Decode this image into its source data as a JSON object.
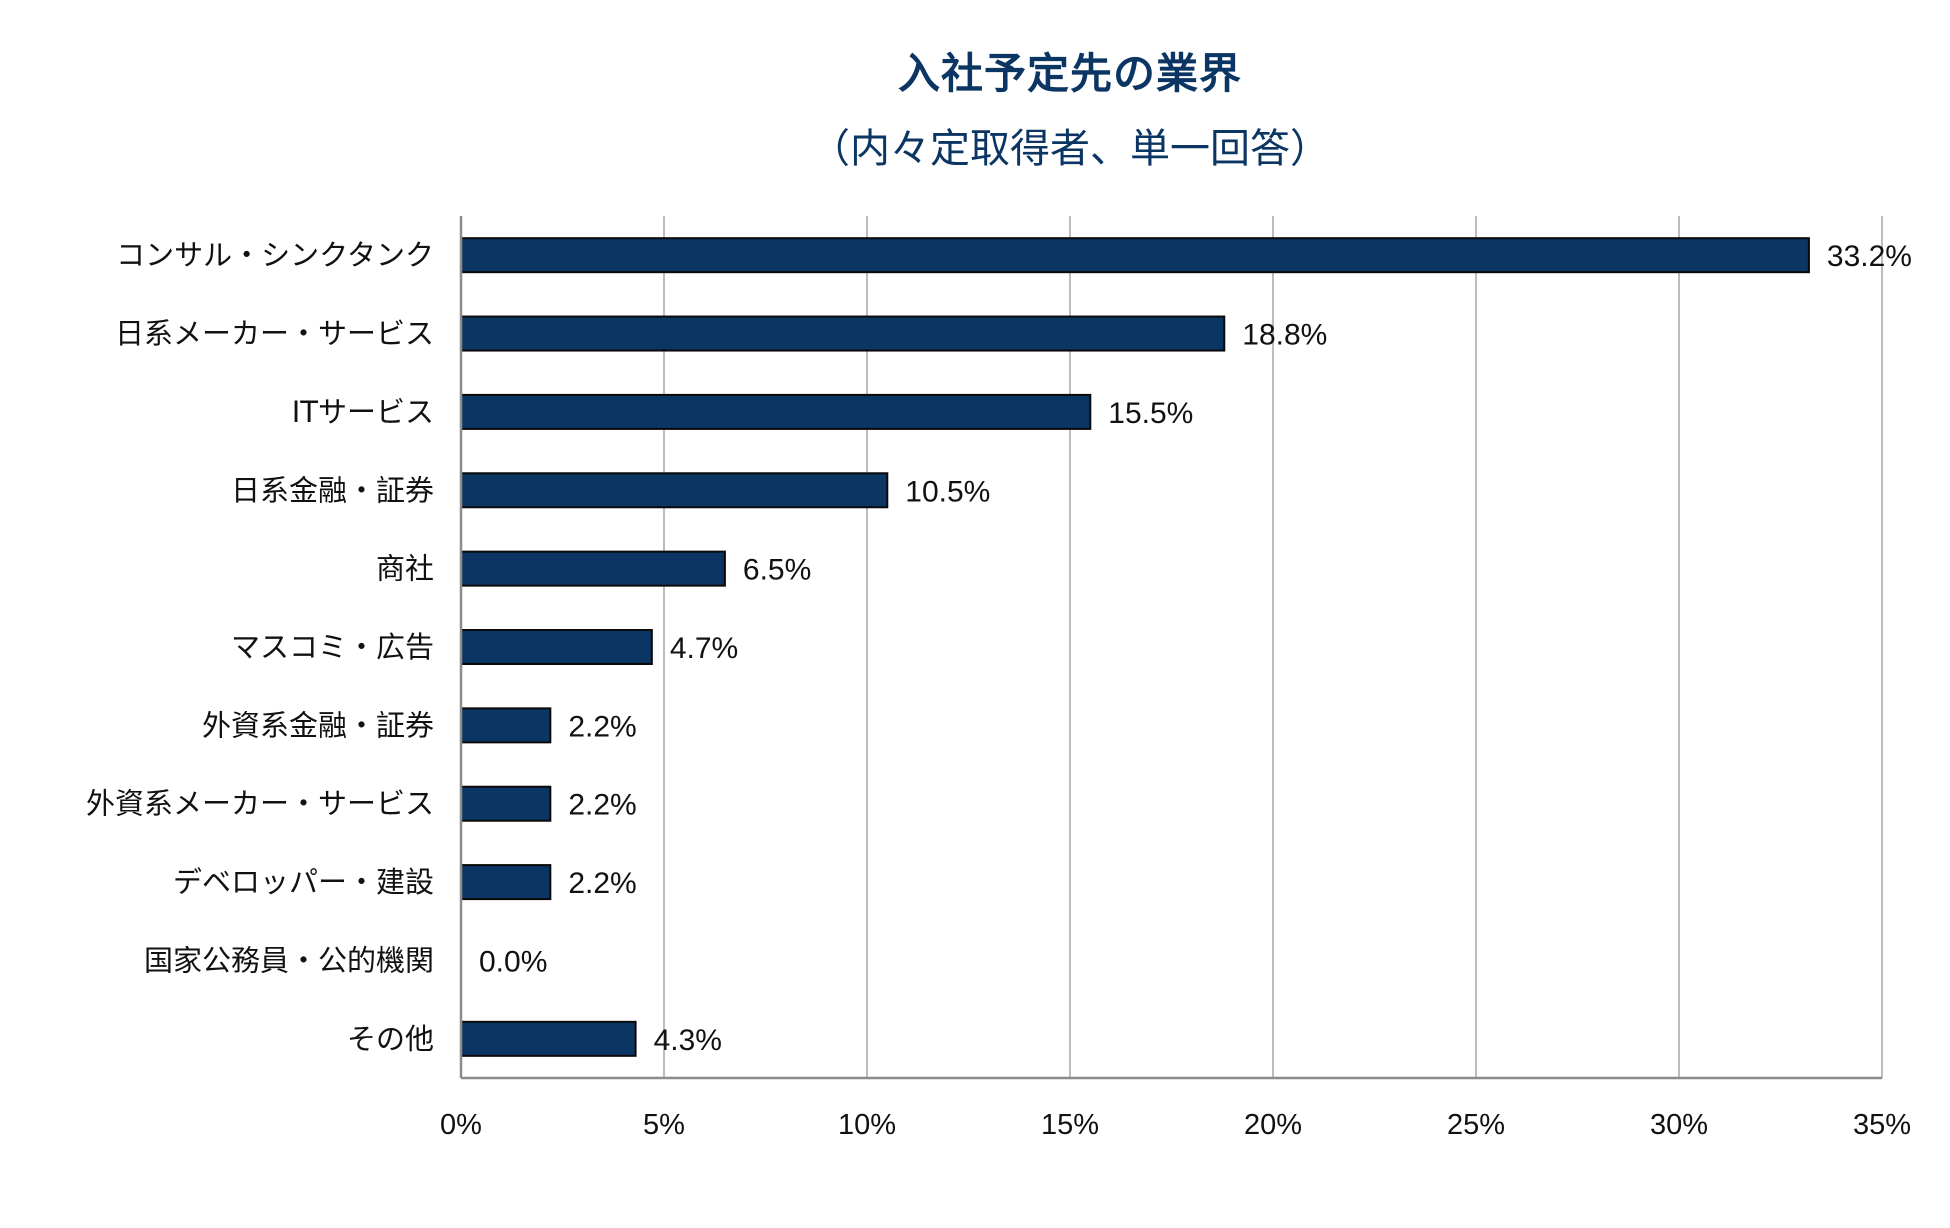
{
  "chart_data": {
    "type": "bar",
    "orientation": "horizontal",
    "title": "入社予定先の業界",
    "subtitle": "（内々定取得者、単一回答）",
    "xlabel": "",
    "ylabel": "",
    "xlim": [
      0,
      35
    ],
    "x_unit": "%",
    "x_ticks": [
      "0%",
      "5%",
      "10%",
      "15%",
      "20%",
      "25%",
      "30%",
      "35%"
    ],
    "x_tick_values": [
      0,
      5,
      10,
      15,
      20,
      25,
      30,
      35
    ],
    "grid": true,
    "legend": "none",
    "bar_color": "#0b3562",
    "categories": [
      "コンサル・シンクタンク",
      "日系メーカー・サービス",
      "ITサービス",
      "日系金融・証券",
      "商社",
      "マスコミ・広告",
      "外資系金融・証券",
      "外資系メーカー・サービス",
      "デベロッパー・建設",
      "国家公務員・公的機関",
      "その他"
    ],
    "values": [
      33.2,
      18.8,
      15.5,
      10.5,
      6.5,
      4.7,
      2.2,
      2.2,
      2.2,
      0.0,
      4.3
    ],
    "value_labels": [
      "33.2%",
      "18.8%",
      "15.5%",
      "10.5%",
      "6.5%",
      "4.7%",
      "2.2%",
      "2.2%",
      "2.2%",
      "0.0%",
      "4.3%"
    ]
  }
}
